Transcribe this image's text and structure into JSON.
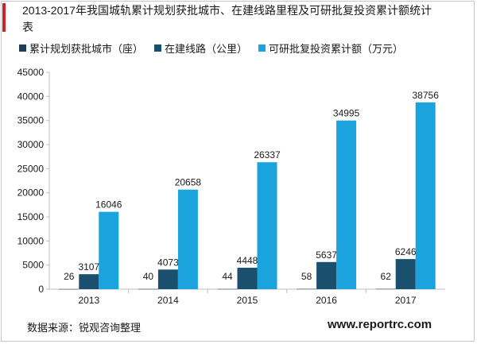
{
  "colors": {
    "accent": "#cc2229",
    "series1": "#1a3d59",
    "series2": "#1a4f6e",
    "series3": "#1aa3dc",
    "grid": "#d9d9d9",
    "axis": "#bfbfbf"
  },
  "chart_data": {
    "type": "bar",
    "title": "2013-2017年我国城轨累计规划获批城市、在建线路里程及可研批复投资累计额统计表",
    "xlabel": "",
    "ylabel": "",
    "categories": [
      "2013",
      "2014",
      "2015",
      "2016",
      "2017"
    ],
    "series": [
      {
        "name": "累计规划获批城市（座）",
        "values": [
          26,
          40,
          44,
          58,
          62
        ]
      },
      {
        "name": "在建线路（公里）",
        "values": [
          3107,
          4073,
          4448,
          5637,
          6246
        ]
      },
      {
        "name": "可研批复投资累计额（万元）",
        "values": [
          16046,
          20658,
          26337,
          34995,
          38756
        ]
      }
    ],
    "ylim": [
      0,
      45000
    ],
    "yticks": [
      0,
      5000,
      10000,
      15000,
      20000,
      25000,
      30000,
      35000,
      40000,
      45000
    ],
    "grid": false,
    "legend_position": "top-left"
  },
  "footer": {
    "source": "数据来源：锐观咨询整理",
    "website": "www.reportrc.com"
  }
}
